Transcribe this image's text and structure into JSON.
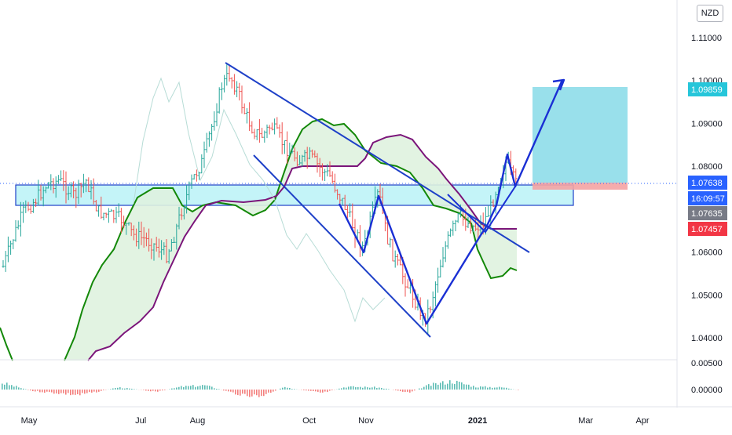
{
  "toolbar": {
    "currency": "NZD"
  },
  "chart_data": {
    "type": "candlestick",
    "title": "",
    "xlabel": "",
    "ylabel": "",
    "ylim": [
      1.035,
      1.115
    ],
    "y_ticks": [
      "1.11000",
      "1.10000",
      "1.09000",
      "1.08000",
      "1.06000",
      "1.05000",
      "1.04000"
    ],
    "y_tick_values": [
      1.11,
      1.1,
      1.09,
      1.08,
      1.06,
      1.05,
      1.04
    ],
    "x_ticks": [
      {
        "label": "May",
        "date": "2020-05-01"
      },
      {
        "label": "Jul",
        "date": "2020-07-01"
      },
      {
        "label": "Aug",
        "date": "2020-08-01"
      },
      {
        "label": "Oct",
        "date": "2020-10-01"
      },
      {
        "label": "Nov",
        "date": "2020-11-01"
      },
      {
        "label": "2021",
        "date": "2021-01-01",
        "bold": true
      },
      {
        "label": "Mar",
        "date": "2021-03-01"
      },
      {
        "label": "Apr",
        "date": "2021-04-01"
      }
    ],
    "price_tags": [
      {
        "label": "1.09859",
        "value": 1.09859,
        "color": "#26c6da"
      },
      {
        "label": "1.07638",
        "value": 1.07638,
        "color": "#2962ff"
      },
      {
        "label": "16:09:57",
        "value": 1.0733,
        "color": "#2962ff"
      },
      {
        "label": "1.07635",
        "value": 1.07635,
        "color": "#787b86"
      },
      {
        "label": "1.07457",
        "value": 1.07457,
        "color": "#f23645"
      }
    ],
    "colors": {
      "up": "#26a69a",
      "down": "#ef5350",
      "trendline": "#1e40c8",
      "zone": "#7de7f0",
      "cloud": "#dff2df",
      "span_a": "#138808",
      "span_b": "#7b157a",
      "lagging": "#b7dcd6",
      "target": "#87dbe8",
      "stop": "#f4a3a3"
    },
    "indicator": {
      "name": "oscillator",
      "y_ticks": [
        "0.00500",
        "0.00000"
      ],
      "y_tick_values": [
        0.005,
        0.0
      ]
    }
  }
}
